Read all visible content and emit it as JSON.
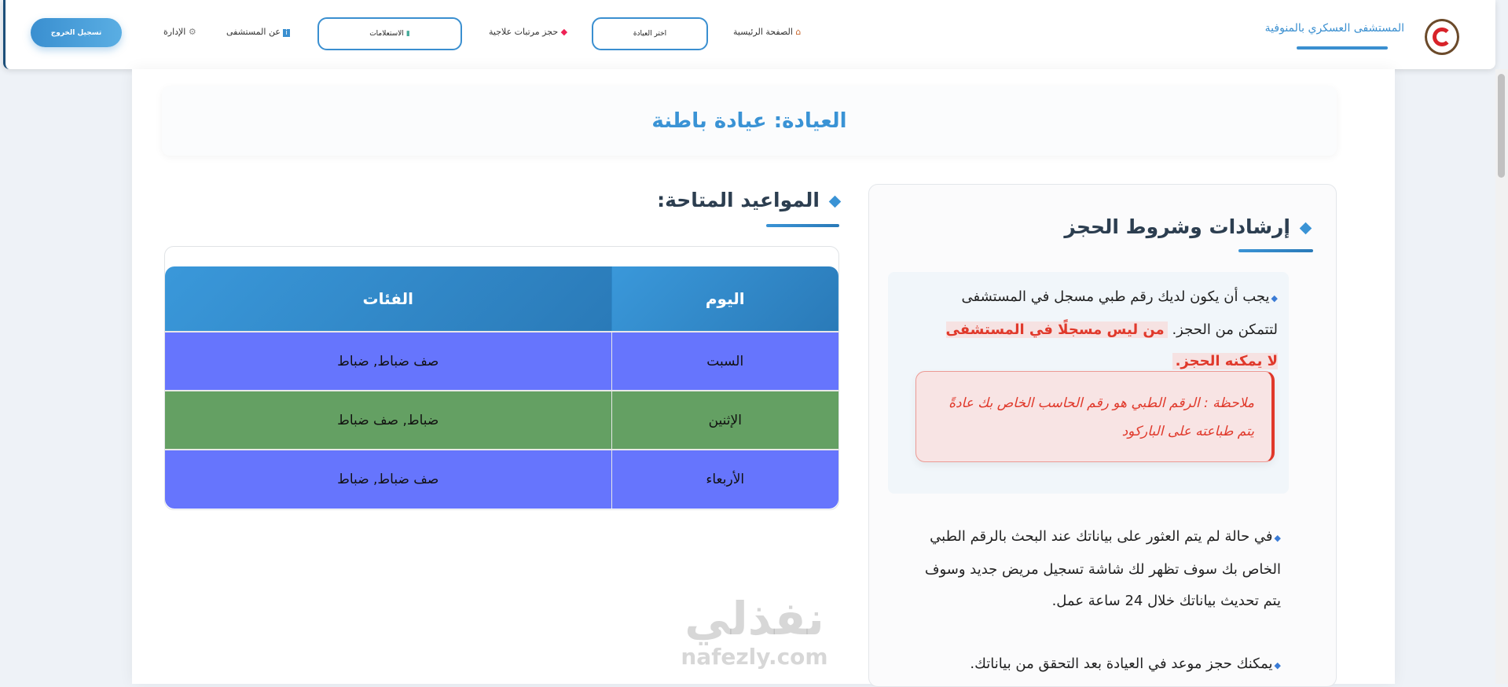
{
  "navbar": {
    "brand_title": "المستشفى العسكري بالمنوفية",
    "logout": "تسجيل الخروج",
    "links": [
      {
        "label": "الإدارة",
        "icon": "gear-icon"
      },
      {
        "label": "عن المستشفى",
        "icon": "info-icon"
      },
      {
        "label": "الاستعلامات",
        "icon": "chart-icon"
      },
      {
        "label": "حجز مرتبات علاجية",
        "icon": "pill-icon"
      },
      {
        "label": "اختر العيادة",
        "icon": ""
      },
      {
        "label": "الصفحة الرئيسية",
        "icon": "home-icon"
      }
    ]
  },
  "page": {
    "clinic_title": "العيادة: عيادة باطنة"
  },
  "appointments": {
    "heading": "المواعيد المتاحة:",
    "columns": [
      "اليوم",
      "الفئات"
    ],
    "rows": [
      {
        "day": "السبت",
        "categories": "صف ضباط, ضباط",
        "color": "#6675fd"
      },
      {
        "day": "الإثنين",
        "categories": "ضباط, صف ضباط",
        "color": "#64a063"
      },
      {
        "day": "الأربعاء",
        "categories": "صف ضباط, ضباط",
        "color": "#6675fd"
      }
    ]
  },
  "instructions": {
    "heading": "إرشادات وشروط الحجز",
    "p1_text": "يجب أن يكون لديك رقم طبي مسجل في المستشفى لتتمكن من الحجز.",
    "p1_highlight": "من ليس مسجلًا في المستشفى لا يمكنه الحجز.",
    "note": "ملاحظة : الرقم الطبي هو رقم الحاسب الخاص بك عادةً يتم طباعته على الباركود",
    "p2": "في حالة لم يتم العثور على بياناتك عند البحث بالرقم الطبي الخاص بك سوف تظهر لك شاشة تسجيل مريض جديد وسوف يتم تحديث بياناتك خلال 24 ساعة عمل.",
    "p3": "يمكنك حجز موعد في العيادة بعد التحقق من بياناتك."
  },
  "watermark": {
    "arabic": "نفذلي",
    "latin": "nafezly.com"
  },
  "colors": {
    "accent": "#3a93d5",
    "danger": "#e0392b"
  }
}
